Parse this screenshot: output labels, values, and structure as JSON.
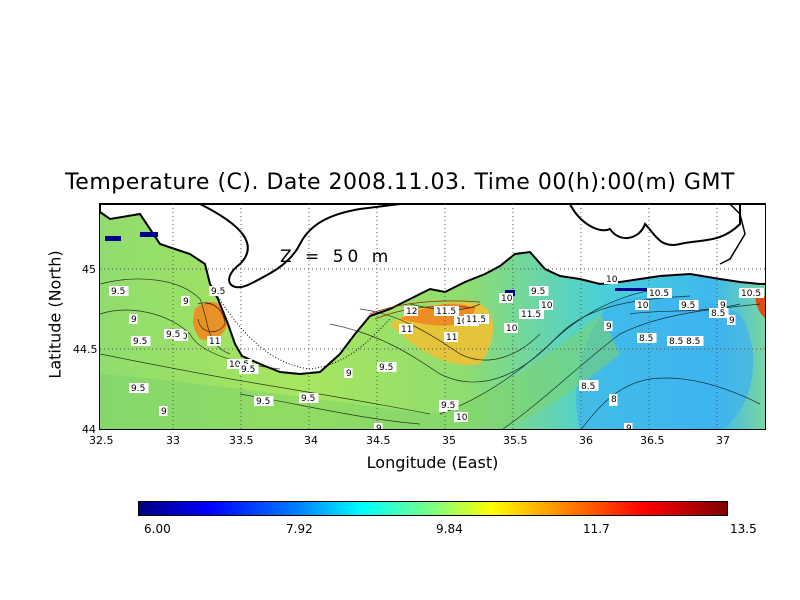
{
  "title": "Temperature (C). Date 2008.11.03. Time 00(h):00(m) GMT",
  "depth_label": "Z = 50 m",
  "x_axis": {
    "label": "Longitude (East)",
    "ticks": [
      "32.5",
      "33",
      "33.5",
      "34",
      "34.5",
      "35",
      "35.5",
      "36",
      "36.5",
      "37"
    ]
  },
  "y_axis": {
    "label": "Latitude (North)",
    "ticks": [
      "45",
      "44.5",
      "44"
    ]
  },
  "colorbar": {
    "labels": [
      "6.00",
      "7.92",
      "9.84",
      "11.7",
      "13.5"
    ]
  },
  "contour_labels": [
    "9.5",
    "9",
    "9.5",
    "9",
    "9.5",
    "10",
    "11",
    "9.5",
    "10.5",
    "9.5",
    "9.5",
    "9",
    "9.5",
    "9",
    "9.5",
    "11",
    "12",
    "11",
    "11.5",
    "10.5",
    "10",
    "9.5",
    "10",
    "10",
    "11.5",
    "11.5",
    "10",
    "10.5",
    "9.5",
    "9",
    "10",
    "8.5",
    "8.5",
    "9",
    "10.5",
    "9",
    "9.5",
    "8.5",
    "8",
    "8.5",
    "8.5",
    "9",
    "9.5",
    "10",
    "8",
    "9",
    "8.5",
    "9"
  ],
  "colors": {
    "land": "#ffffff",
    "coastline": "#000000",
    "sea_mid": "#9be26a",
    "sea_cool": "#35c7e8",
    "sea_warm": "#f2b020",
    "sea_hot": "#d64010"
  }
}
